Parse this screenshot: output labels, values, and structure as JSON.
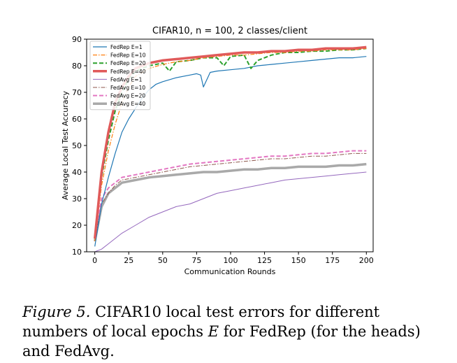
{
  "chart_data": {
    "type": "line",
    "title": "CIFAR10, n = 100, 2 classes/client",
    "xlabel": "Communication Rounds",
    "ylabel": "Average Local Test Accuracy",
    "xlim": [
      -6,
      205
    ],
    "ylim": [
      10,
      90
    ],
    "xticks": [
      0,
      25,
      50,
      75,
      100,
      125,
      150,
      175,
      200
    ],
    "yticks": [
      10,
      20,
      30,
      40,
      50,
      60,
      70,
      80,
      90
    ],
    "grid": false,
    "legend_position": "top-left",
    "series": [
      {
        "name": "FedRep E=1",
        "color": "#1f77b4",
        "style": "solid",
        "width": 1.2,
        "x": [
          0,
          5,
          10,
          15,
          20,
          25,
          30,
          35,
          40,
          45,
          50,
          60,
          70,
          75,
          78,
          80,
          85,
          90,
          100,
          110,
          120,
          130,
          140,
          150,
          160,
          170,
          180,
          190,
          200
        ],
        "y": [
          12,
          28,
          38,
          47,
          55,
          60,
          64,
          68,
          71,
          73,
          74,
          75.5,
          76.5,
          77,
          76.5,
          72,
          77.5,
          78,
          78.5,
          79,
          80,
          80.5,
          81,
          81.5,
          82,
          82.5,
          83,
          83,
          83.5
        ]
      },
      {
        "name": "FedRep E=10",
        "color": "#ff7f0e",
        "style": "dashdot",
        "width": 1.2,
        "x": [
          0,
          5,
          10,
          15,
          20,
          25,
          30,
          40,
          50,
          60,
          70,
          80,
          90,
          100,
          110,
          120,
          130,
          140,
          150,
          160,
          170,
          180,
          190,
          200
        ],
        "y": [
          14,
          35,
          48,
          58,
          66,
          72,
          76,
          79,
          80.5,
          81.5,
          82,
          83,
          83.5,
          84,
          84,
          84.5,
          85,
          85,
          85.5,
          85.5,
          86,
          86,
          86,
          86.5
        ]
      },
      {
        "name": "FedRep E=20",
        "color": "#2ca02c",
        "style": "dashed",
        "width": 2,
        "x": [
          0,
          5,
          10,
          15,
          20,
          25,
          30,
          40,
          50,
          55,
          60,
          70,
          80,
          90,
          95,
          100,
          110,
          115,
          120,
          130,
          140,
          150,
          160,
          170,
          180,
          190,
          200
        ],
        "y": [
          15,
          38,
          52,
          63,
          70,
          75,
          78,
          80,
          81,
          78,
          81.5,
          82,
          83,
          83,
          80,
          83.5,
          84,
          79,
          82,
          84,
          85,
          85,
          85.5,
          85.5,
          86,
          86,
          86.5
        ]
      },
      {
        "name": "FedRep E=40",
        "color": "#e05a5a",
        "style": "solid",
        "width": 3.5,
        "x": [
          0,
          5,
          10,
          15,
          20,
          25,
          30,
          40,
          50,
          60,
          70,
          80,
          90,
          100,
          110,
          120,
          130,
          140,
          150,
          160,
          170,
          180,
          190,
          200
        ],
        "y": [
          15,
          40,
          55,
          66,
          72,
          76,
          79,
          81,
          82,
          82.5,
          83,
          83.5,
          84,
          84.5,
          85,
          85,
          85.5,
          85.5,
          86,
          86,
          86.5,
          86.5,
          86.5,
          87
        ]
      },
      {
        "name": "FedAvg E=1",
        "color": "#9467bd",
        "style": "solid",
        "width": 1,
        "x": [
          0,
          5,
          10,
          15,
          20,
          30,
          40,
          50,
          60,
          70,
          80,
          90,
          100,
          110,
          120,
          130,
          140,
          150,
          160,
          170,
          180,
          190,
          200
        ],
        "y": [
          10,
          11,
          13,
          15,
          17,
          20,
          23,
          25,
          27,
          28,
          30,
          32,
          33,
          34,
          35,
          36,
          37,
          37.5,
          38,
          38.5,
          39,
          39.5,
          40
        ]
      },
      {
        "name": "FedAvg E=10",
        "color": "#8c564b",
        "style": "dashdot",
        "width": 1,
        "x": [
          0,
          5,
          10,
          15,
          20,
          30,
          40,
          50,
          60,
          70,
          80,
          90,
          100,
          110,
          120,
          130,
          140,
          150,
          160,
          170,
          180,
          190,
          200
        ],
        "y": [
          14,
          28,
          32,
          35,
          37,
          38,
          39,
          40,
          41,
          42,
          42.5,
          43,
          43.5,
          44,
          44.5,
          45,
          45,
          45.5,
          46,
          46,
          46.5,
          47,
          47
        ]
      },
      {
        "name": "FedAvg E=20",
        "color": "#e377c2",
        "style": "dashed",
        "width": 2,
        "x": [
          0,
          5,
          10,
          15,
          20,
          30,
          40,
          50,
          60,
          70,
          80,
          90,
          100,
          110,
          120,
          130,
          140,
          150,
          160,
          170,
          180,
          190,
          200
        ],
        "y": [
          15,
          30,
          34,
          36,
          38,
          39,
          40,
          41,
          42,
          43,
          43.5,
          44,
          44.5,
          45,
          45.5,
          46,
          46,
          46.5,
          47,
          47,
          47.5,
          48,
          48
        ]
      },
      {
        "name": "FedAvg E=40",
        "color": "#a9a9a9",
        "style": "solid",
        "width": 3.5,
        "x": [
          0,
          5,
          10,
          15,
          20,
          30,
          40,
          50,
          60,
          70,
          80,
          90,
          100,
          110,
          120,
          130,
          140,
          150,
          160,
          170,
          180,
          190,
          200
        ],
        "y": [
          14,
          27,
          32,
          34,
          36,
          37,
          38,
          38.5,
          39,
          39.5,
          40,
          40,
          40.5,
          41,
          41,
          41.5,
          41.5,
          42,
          42,
          42,
          42.5,
          42.5,
          43
        ]
      }
    ]
  },
  "caption": {
    "label": "Figure 5.",
    "text_before_var": "CIFAR10 local test errors for different numbers of local epochs",
    "var": "E",
    "text_after_var": "for FedRep (for the heads) and FedAvg."
  }
}
